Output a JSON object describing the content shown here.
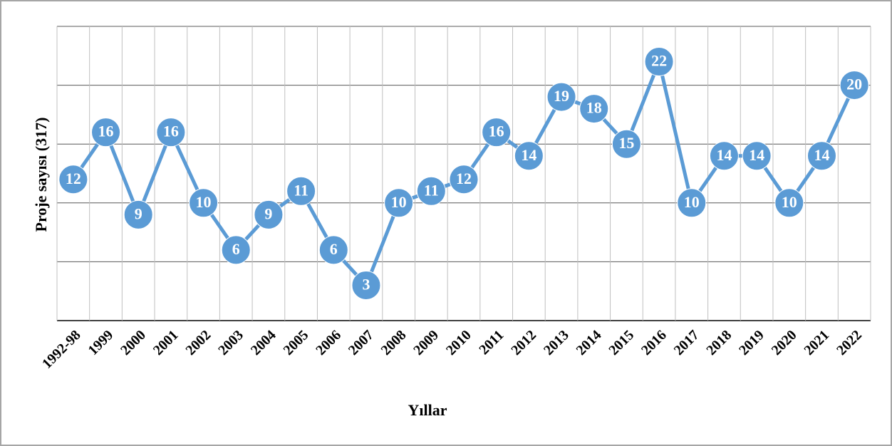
{
  "chart_data": {
    "type": "line",
    "x_label": "Yıllar",
    "y_label": "Proje sayısı (317)",
    "categories": [
      "1992-98",
      "1999",
      "2000",
      "2001",
      "2002",
      "2003",
      "2004",
      "2005",
      "2006",
      "2007",
      "2008",
      "2009",
      "2010",
      "2011",
      "2012",
      "2013",
      "2014",
      "2015",
      "2016",
      "2017",
      "2018",
      "2019",
      "2020",
      "2021",
      "2022"
    ],
    "series": [
      {
        "color": "#5b9bd5",
        "values": [
          12,
          16,
          9,
          16,
          10,
          6,
          9,
          11,
          6,
          3,
          10,
          11,
          12,
          16,
          14,
          19,
          18,
          15,
          22,
          10,
          14,
          14,
          10,
          14,
          20
        ]
      }
    ],
    "ylim": [
      0,
      25
    ],
    "yticks": [
      0,
      5,
      10,
      15,
      20,
      25
    ],
    "grid": true
  }
}
